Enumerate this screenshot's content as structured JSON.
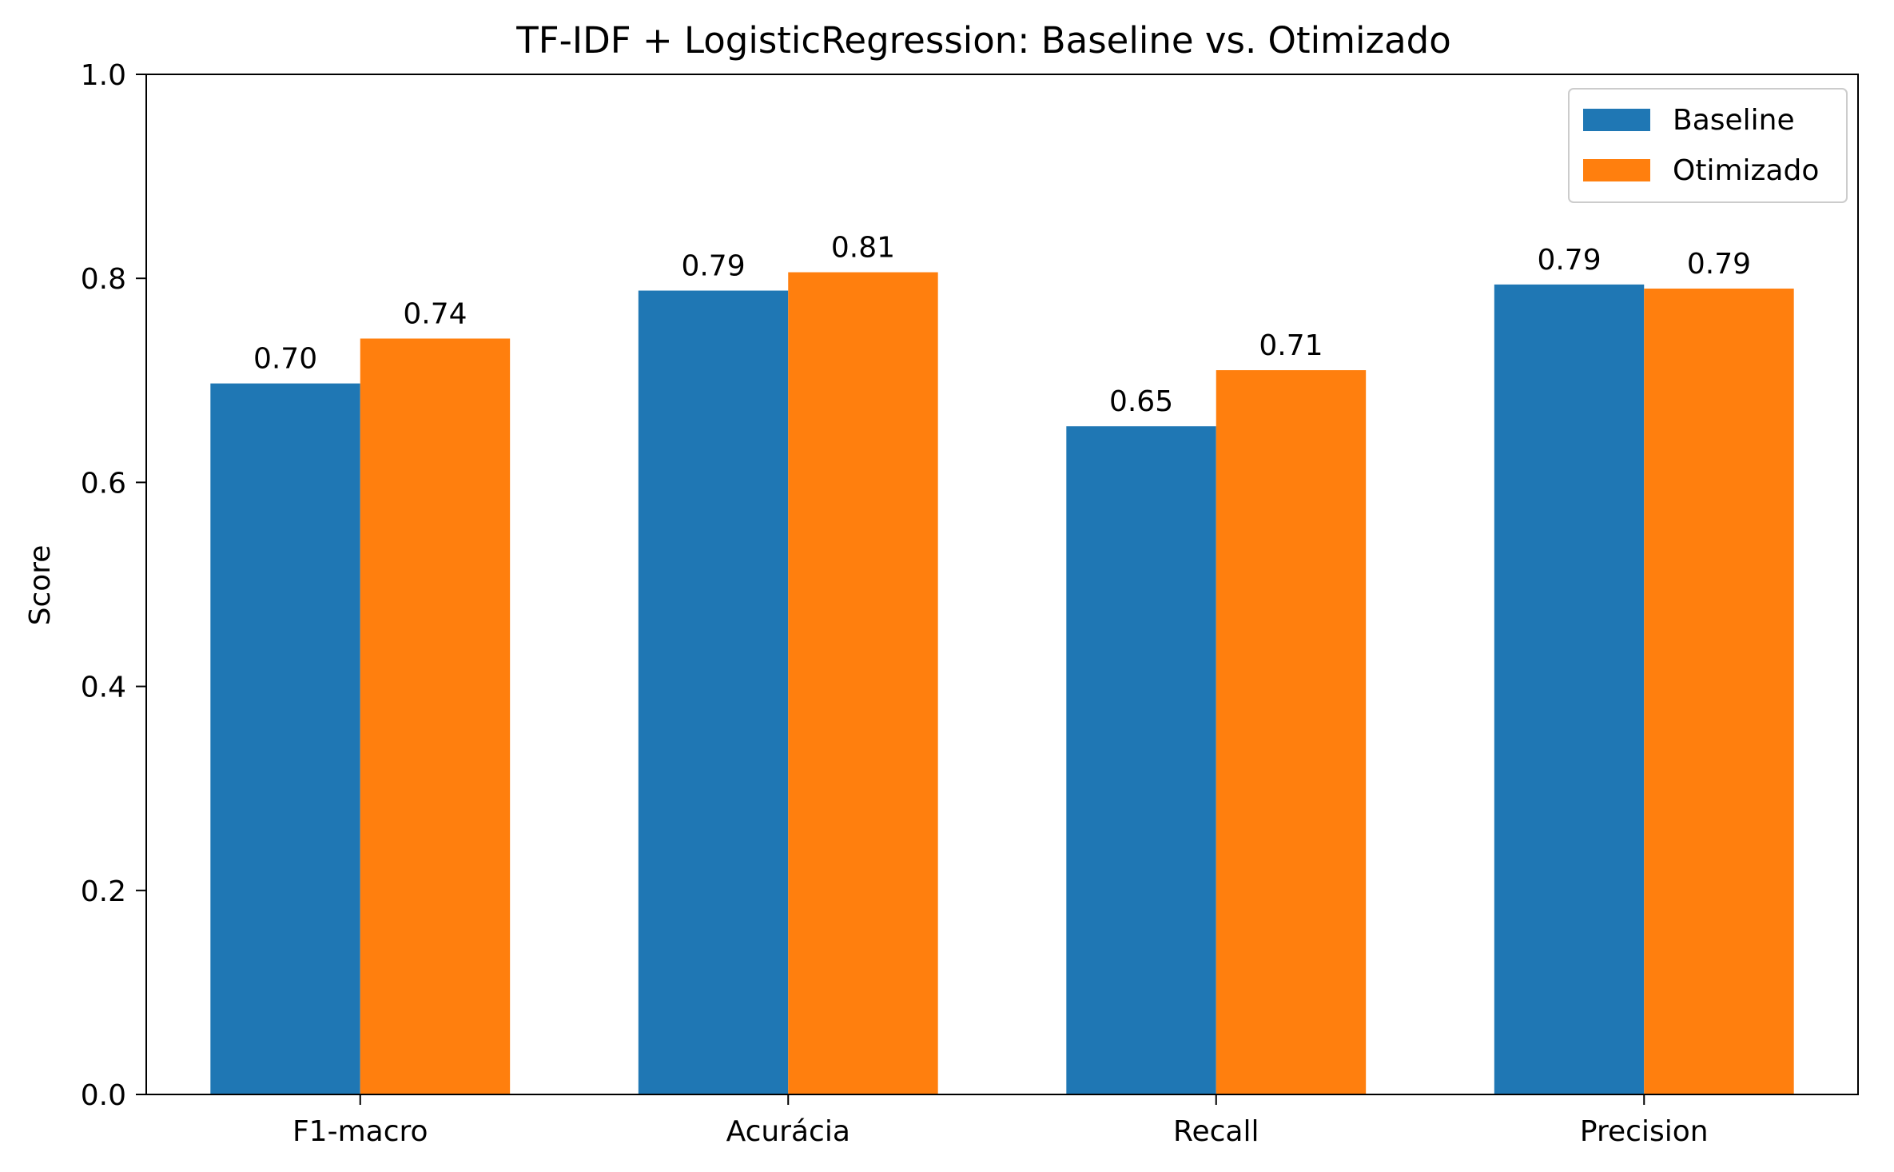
{
  "chart_data": {
    "type": "bar",
    "title": "TF-IDF + LogisticRegression: Baseline vs. Otimizado",
    "xlabel": "",
    "ylabel": "Score",
    "ylim": [
      0,
      1.0
    ],
    "yticks": [
      "0.0",
      "0.2",
      "0.4",
      "0.6",
      "0.8",
      "1.0"
    ],
    "categories": [
      "F1-macro",
      "Acurácia",
      "Recall",
      "Precision"
    ],
    "series": [
      {
        "name": "Baseline",
        "color": "#1f77b4",
        "values": [
          0.697,
          0.788,
          0.655,
          0.794
        ],
        "labels": [
          "0.70",
          "0.79",
          "0.65",
          "0.79"
        ]
      },
      {
        "name": "Otimizado",
        "color": "#ff7f0e",
        "values": [
          0.741,
          0.806,
          0.71,
          0.79
        ],
        "labels": [
          "0.74",
          "0.81",
          "0.71",
          "0.79"
        ]
      }
    ],
    "legend": {
      "position": "top-right"
    },
    "grid": false
  }
}
